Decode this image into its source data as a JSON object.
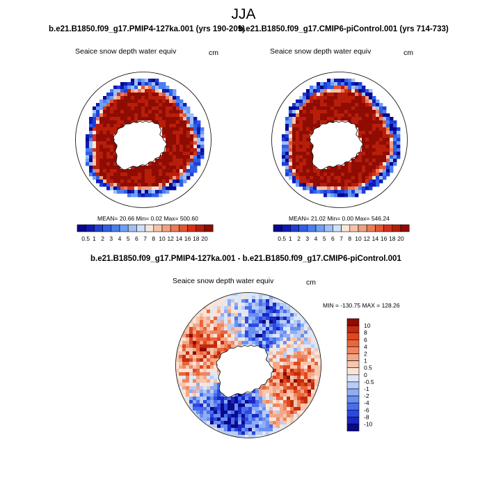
{
  "figure": {
    "season": "JJA",
    "title_left": "b.e21.B1850.f09_g17.PMIP4-127ka.001 (yrs 190-209)",
    "title_right": "b.e21.B1850.f09_g17.CMIP6-piControl.001 (yrs 714-733)",
    "title_diff": "b.e21.B1850.f09_g17.PMIP4-127ka.001 - b.e21.B1850.f09_g17.CMIP6-piControl.001"
  },
  "colors": {
    "seq_colorbar": [
      "#08088e",
      "#0d1ab5",
      "#1f3fd6",
      "#2f5fe6",
      "#4a7ef0",
      "#6e9ff5",
      "#9ec0f7",
      "#cfe0f8",
      "#fbe6d6",
      "#f6c3aa",
      "#f0a080",
      "#ea7a58",
      "#e35534",
      "#d4301a",
      "#b71e0a",
      "#8f0c03"
    ],
    "diff_colorbar": [
      "#0a0a8a",
      "#1a28c4",
      "#2b49e0",
      "#4a6dec",
      "#6a8ff2",
      "#8fadf5",
      "#b8ccf7",
      "#dce7f9",
      "#fbe4d7",
      "#f7c6ae",
      "#f3a786",
      "#ef8660",
      "#ea653c",
      "#e0461f",
      "#c42a0c",
      "#8f0b03"
    ],
    "land": "#ffffff",
    "coast": "#000000"
  },
  "chart_data": [
    {
      "type": "heatmap",
      "title": "b.e21.B1850.f09_g17.PMIP4-127ka.001 (yrs 190-209)",
      "variable_label": "Seaice snow depth water equiv",
      "units": "cm",
      "stats": "MEAN=  20.66  Min=   0.02  Max= 500.60",
      "stats_values": {
        "mean": 20.66,
        "min": 0.02,
        "max": 500.6
      },
      "colorbar_levels": [
        "0.5",
        "1",
        "2",
        "3",
        "4",
        "5",
        "6",
        "7",
        "8",
        "10",
        "12",
        "14",
        "16",
        "18",
        "20"
      ],
      "colorbar_orientation": "horizontal"
    },
    {
      "type": "heatmap",
      "title": "b.e21.B1850.f09_g17.CMIP6-piControl.001 (yrs 714-733)",
      "variable_label": "Seaice snow depth water equiv",
      "units": "cm",
      "stats": "MEAN=  21.02  Min=   0.00  Max= 546.24",
      "stats_values": {
        "mean": 21.02,
        "min": 0.0,
        "max": 546.24
      },
      "colorbar_levels": [
        "0.5",
        "1",
        "2",
        "3",
        "4",
        "5",
        "6",
        "7",
        "8",
        "10",
        "12",
        "14",
        "16",
        "18",
        "20"
      ],
      "colorbar_orientation": "horizontal"
    },
    {
      "type": "heatmap",
      "title": "b.e21.B1850.f09_g17.PMIP4-127ka.001 - b.e21.B1850.f09_g17.CMIP6-piControl.001",
      "variable_label": "Seaice snow depth water equiv",
      "units": "cm",
      "stats": "MIN = -130.75 MAX = 128.26",
      "stats_values": {
        "min": -130.75,
        "max": 128.26
      },
      "colorbar_levels": [
        "10",
        "8",
        "6",
        "4",
        "2",
        "1",
        "0.5",
        "0",
        "-0.5",
        "-1",
        "-2",
        "-4",
        "-6",
        "-8",
        "-10"
      ],
      "colorbar_orientation": "vertical"
    }
  ]
}
